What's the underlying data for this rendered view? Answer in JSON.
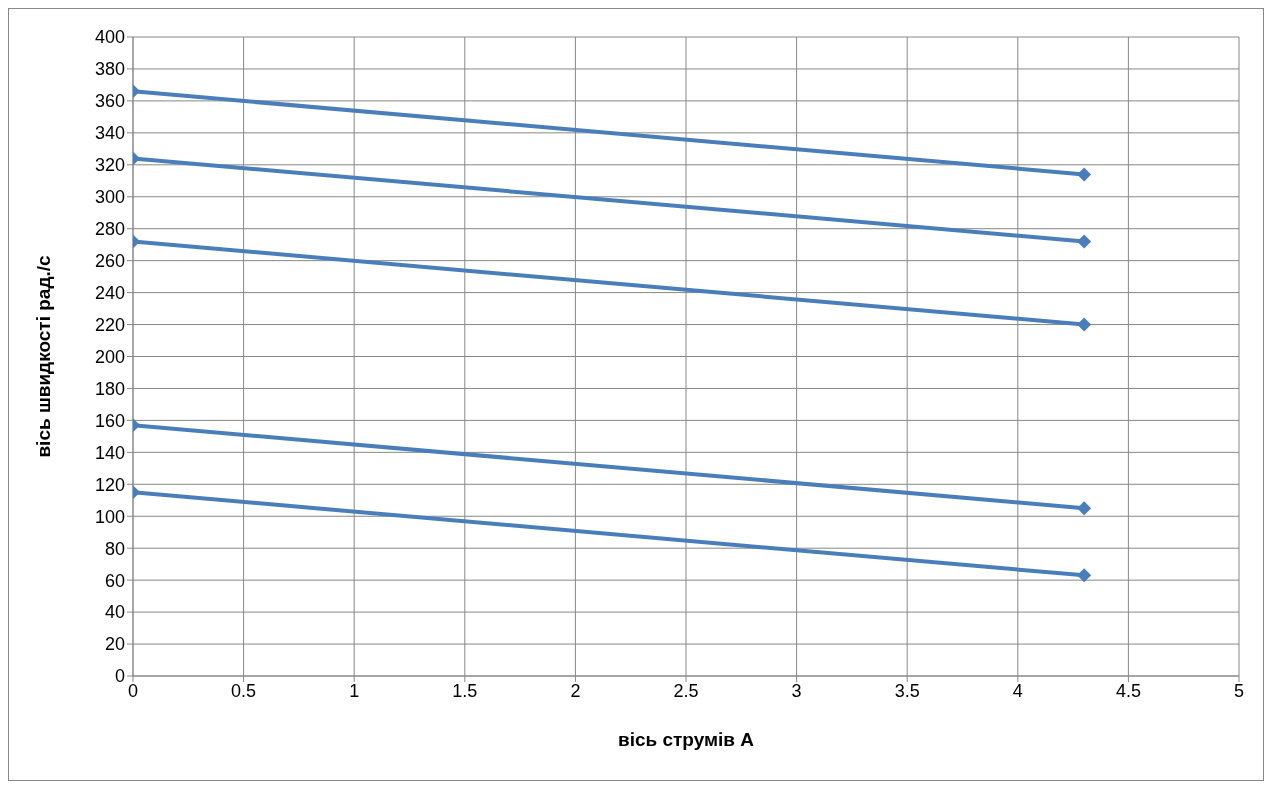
{
  "chart_data": {
    "type": "line",
    "xlabel": "вісь струмів  А",
    "ylabel": "вісь швидкості рад./с",
    "x": [
      0,
      4.3
    ],
    "series": [
      {
        "color": "#4a7ebb",
        "values": [
          366,
          314
        ]
      },
      {
        "color": "#4a7ebb",
        "values": [
          324,
          272
        ]
      },
      {
        "color": "#4a7ebb",
        "values": [
          272,
          220
        ]
      },
      {
        "color": "#4a7ebb",
        "values": [
          157,
          105
        ]
      },
      {
        "color": "#4a7ebb",
        "values": [
          115,
          63
        ]
      }
    ],
    "xlim": [
      0,
      5
    ],
    "xticks": [
      0,
      0.5,
      1,
      1.5,
      2,
      2.5,
      3,
      3.5,
      4,
      4.5,
      5
    ],
    "ylim": [
      0,
      400
    ],
    "yticks": [
      0,
      20,
      40,
      60,
      80,
      100,
      120,
      140,
      160,
      180,
      200,
      220,
      240,
      260,
      280,
      300,
      320,
      340,
      360,
      380,
      400
    ],
    "grid": true,
    "marker": "diamond",
    "line_style": "solid"
  }
}
